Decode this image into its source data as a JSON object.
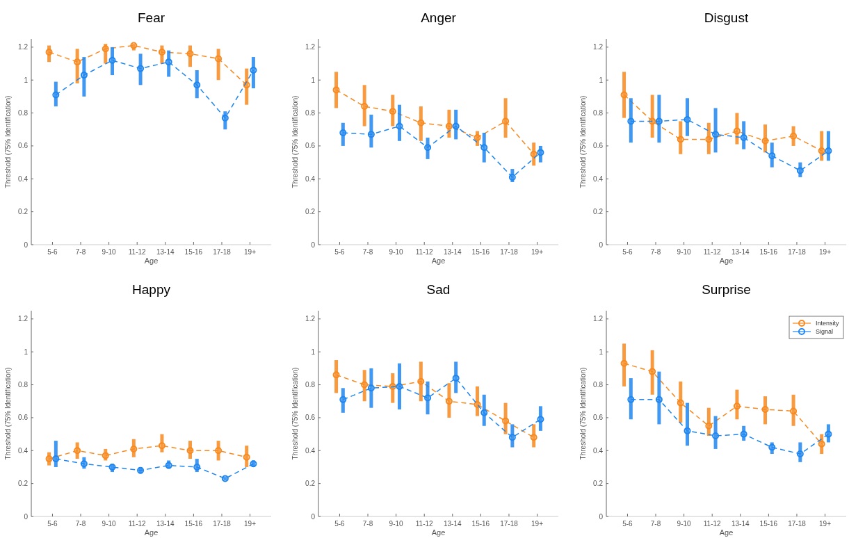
{
  "chart_data": [
    {
      "type": "line",
      "title": "Fear",
      "xlabel": "Age",
      "ylabel": "Threshold (75% Identification)",
      "categories": [
        "5-6",
        "7-8",
        "9-10",
        "11-12",
        "13-14",
        "15-16",
        "17-18",
        "19+"
      ],
      "ylim": [
        0,
        1.25
      ],
      "yticks": [
        0,
        0.2,
        0.4,
        0.6,
        0.8,
        1,
        1.2
      ],
      "marker": "circle",
      "line_style": "dashed",
      "legend": false,
      "series": [
        {
          "color": "#f7891f",
          "values": [
            1.17,
            1.11,
            1.19,
            1.21,
            1.17,
            1.16,
            1.13,
            0.97
          ],
          "errors": [
            [
              1.11,
              1.21
            ],
            [
              0.98,
              1.19
            ],
            [
              1.1,
              1.22
            ],
            [
              1.18,
              1.22
            ],
            [
              1.1,
              1.21
            ],
            [
              1.08,
              1.21
            ],
            [
              1.0,
              1.19
            ],
            [
              0.85,
              1.07
            ]
          ]
        },
        {
          "color": "#1f86f0",
          "values": [
            0.91,
            1.03,
            1.12,
            1.07,
            1.11,
            0.97,
            0.77,
            1.06
          ],
          "errors": [
            [
              0.84,
              0.99
            ],
            [
              0.9,
              1.14
            ],
            [
              1.03,
              1.2
            ],
            [
              0.97,
              1.16
            ],
            [
              1.02,
              1.18
            ],
            [
              0.89,
              1.06
            ],
            [
              0.7,
              0.81
            ],
            [
              0.95,
              1.14
            ]
          ]
        }
      ]
    },
    {
      "type": "line",
      "title": "Anger",
      "xlabel": "Age",
      "ylabel": "Threshold (75% Identification)",
      "categories": [
        "5-6",
        "7-8",
        "9-10",
        "11-12",
        "13-14",
        "15-16",
        "17-18",
        "19+"
      ],
      "ylim": [
        0,
        1.25
      ],
      "yticks": [
        0,
        0.2,
        0.4,
        0.6,
        0.8,
        1,
        1.2
      ],
      "marker": "circle",
      "line_style": "dashed",
      "legend": false,
      "series": [
        {
          "color": "#f7891f",
          "values": [
            0.94,
            0.84,
            0.81,
            0.74,
            0.72,
            0.65,
            0.75,
            0.55
          ],
          "errors": [
            [
              0.83,
              1.05
            ],
            [
              0.72,
              0.97
            ],
            [
              0.72,
              0.91
            ],
            [
              0.63,
              0.84
            ],
            [
              0.65,
              0.82
            ],
            [
              0.6,
              0.69
            ],
            [
              0.65,
              0.89
            ],
            [
              0.48,
              0.62
            ]
          ]
        },
        {
          "color": "#1f86f0",
          "values": [
            0.68,
            0.67,
            0.72,
            0.59,
            0.72,
            0.59,
            0.41,
            0.56
          ],
          "errors": [
            [
              0.6,
              0.74
            ],
            [
              0.59,
              0.79
            ],
            [
              0.63,
              0.85
            ],
            [
              0.52,
              0.65
            ],
            [
              0.64,
              0.82
            ],
            [
              0.5,
              0.68
            ],
            [
              0.38,
              0.46
            ],
            [
              0.5,
              0.6
            ]
          ]
        }
      ]
    },
    {
      "type": "line",
      "title": "Disgust",
      "xlabel": "Age",
      "ylabel": "Threshold (75% Identification)",
      "categories": [
        "5-6",
        "7-8",
        "9-10",
        "11-12",
        "13-14",
        "15-16",
        "17-18",
        "19+"
      ],
      "ylim": [
        0,
        1.25
      ],
      "yticks": [
        0,
        0.2,
        0.4,
        0.6,
        0.8,
        1,
        1.2
      ],
      "marker": "circle",
      "line_style": "dashed",
      "legend": false,
      "series": [
        {
          "color": "#f7891f",
          "values": [
            0.91,
            0.75,
            0.64,
            0.64,
            0.69,
            0.63,
            0.66,
            0.57
          ],
          "errors": [
            [
              0.77,
              1.05
            ],
            [
              0.65,
              0.91
            ],
            [
              0.55,
              0.75
            ],
            [
              0.55,
              0.74
            ],
            [
              0.61,
              0.8
            ],
            [
              0.56,
              0.73
            ],
            [
              0.6,
              0.72
            ],
            [
              0.51,
              0.69
            ]
          ]
        },
        {
          "color": "#1f86f0",
          "values": [
            0.75,
            0.75,
            0.76,
            0.67,
            0.65,
            0.54,
            0.45,
            0.57
          ],
          "errors": [
            [
              0.62,
              0.89
            ],
            [
              0.62,
              0.91
            ],
            [
              0.66,
              0.89
            ],
            [
              0.56,
              0.83
            ],
            [
              0.58,
              0.75
            ],
            [
              0.47,
              0.62
            ],
            [
              0.41,
              0.5
            ],
            [
              0.51,
              0.69
            ]
          ]
        }
      ]
    },
    {
      "type": "line",
      "title": "Happy",
      "xlabel": "Age",
      "ylabel": "Threshold (75% Identification)",
      "categories": [
        "5-6",
        "7-8",
        "9-10",
        "11-12",
        "13-14",
        "15-16",
        "17-18",
        "19+"
      ],
      "ylim": [
        0,
        1.25
      ],
      "yticks": [
        0,
        0.2,
        0.4,
        0.6,
        0.8,
        1,
        1.2
      ],
      "marker": "circle",
      "line_style": "dashed",
      "legend": false,
      "series": [
        {
          "color": "#f7891f",
          "values": [
            0.35,
            0.4,
            0.37,
            0.41,
            0.43,
            0.4,
            0.4,
            0.36
          ],
          "errors": [
            [
              0.31,
              0.39
            ],
            [
              0.35,
              0.45
            ],
            [
              0.34,
              0.41
            ],
            [
              0.36,
              0.47
            ],
            [
              0.39,
              0.5
            ],
            [
              0.35,
              0.46
            ],
            [
              0.34,
              0.46
            ],
            [
              0.3,
              0.43
            ]
          ]
        },
        {
          "color": "#1f86f0",
          "values": [
            0.35,
            0.32,
            0.3,
            0.28,
            0.31,
            0.3,
            0.23,
            0.32
          ],
          "errors": [
            [
              0.3,
              0.46
            ],
            [
              0.29,
              0.36
            ],
            [
              0.27,
              0.32
            ],
            [
              0.26,
              0.3
            ],
            [
              0.29,
              0.34
            ],
            [
              0.27,
              0.35
            ],
            [
              0.22,
              0.24
            ],
            [
              0.3,
              0.34
            ]
          ]
        }
      ]
    },
    {
      "type": "line",
      "title": "Sad",
      "xlabel": "Age",
      "ylabel": "Threshold (75% Identification)",
      "categories": [
        "5-6",
        "7-8",
        "9-10",
        "11-12",
        "13-14",
        "15-16",
        "17-18",
        "19+"
      ],
      "ylim": [
        0,
        1.25
      ],
      "yticks": [
        0,
        0.2,
        0.4,
        0.6,
        0.8,
        1,
        1.2
      ],
      "marker": "circle",
      "line_style": "dashed",
      "legend": false,
      "series": [
        {
          "color": "#f7891f",
          "values": [
            0.86,
            0.8,
            0.79,
            0.82,
            0.7,
            0.68,
            0.58,
            0.48
          ],
          "errors": [
            [
              0.75,
              0.95
            ],
            [
              0.7,
              0.89
            ],
            [
              0.69,
              0.87
            ],
            [
              0.7,
              0.94
            ],
            [
              0.6,
              0.81
            ],
            [
              0.61,
              0.79
            ],
            [
              0.5,
              0.69
            ],
            [
              0.42,
              0.56
            ]
          ]
        },
        {
          "color": "#1f86f0",
          "values": [
            0.71,
            0.78,
            0.79,
            0.72,
            0.84,
            0.63,
            0.48,
            0.59
          ],
          "errors": [
            [
              0.63,
              0.78
            ],
            [
              0.66,
              0.9
            ],
            [
              0.65,
              0.93
            ],
            [
              0.62,
              0.82
            ],
            [
              0.75,
              0.94
            ],
            [
              0.55,
              0.74
            ],
            [
              0.42,
              0.56
            ],
            [
              0.52,
              0.67
            ]
          ]
        }
      ]
    },
    {
      "type": "line",
      "title": "Surprise",
      "xlabel": "Age",
      "ylabel": "Threshold (75% Identification)",
      "categories": [
        "5-6",
        "7-8",
        "9-10",
        "11-12",
        "13-14",
        "15-16",
        "17-18",
        "19+"
      ],
      "ylim": [
        0,
        1.25
      ],
      "yticks": [
        0,
        0.2,
        0.4,
        0.6,
        0.8,
        1,
        1.2
      ],
      "marker": "circle",
      "line_style": "dashed",
      "legend": "top right",
      "series": [
        {
          "name": "Intensity",
          "color": "#f7891f",
          "values": [
            0.93,
            0.88,
            0.69,
            0.55,
            0.67,
            0.65,
            0.64,
            0.44
          ],
          "errors": [
            [
              0.79,
              1.05
            ],
            [
              0.74,
              1.01
            ],
            [
              0.57,
              0.82
            ],
            [
              0.49,
              0.66
            ],
            [
              0.59,
              0.77
            ],
            [
              0.56,
              0.73
            ],
            [
              0.55,
              0.74
            ],
            [
              0.38,
              0.5
            ]
          ]
        },
        {
          "name": "Signal",
          "color": "#1f86f0",
          "values": [
            0.71,
            0.71,
            0.52,
            0.49,
            0.5,
            0.42,
            0.38,
            0.5
          ],
          "errors": [
            [
              0.59,
              0.84
            ],
            [
              0.56,
              0.88
            ],
            [
              0.43,
              0.69
            ],
            [
              0.41,
              0.61
            ],
            [
              0.46,
              0.55
            ],
            [
              0.38,
              0.45
            ],
            [
              0.33,
              0.45
            ],
            [
              0.45,
              0.56
            ]
          ]
        }
      ]
    }
  ]
}
